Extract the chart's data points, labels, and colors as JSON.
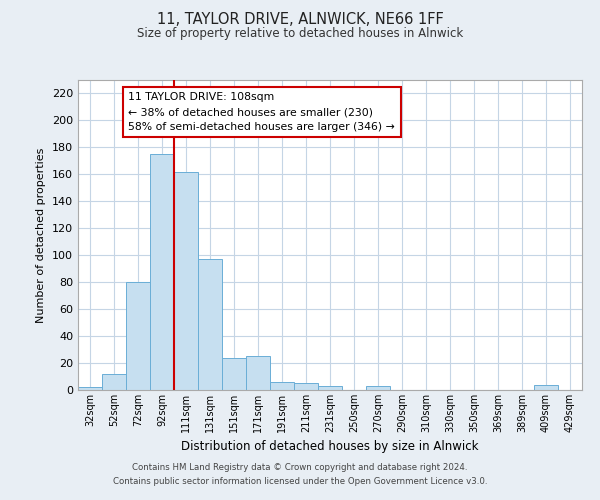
{
  "title1": "11, TAYLOR DRIVE, ALNWICK, NE66 1FF",
  "title2": "Size of property relative to detached houses in Alnwick",
  "xlabel": "Distribution of detached houses by size in Alnwick",
  "ylabel": "Number of detached properties",
  "bar_labels": [
    "32sqm",
    "52sqm",
    "72sqm",
    "92sqm",
    "111sqm",
    "131sqm",
    "151sqm",
    "171sqm",
    "191sqm",
    "211sqm",
    "231sqm",
    "250sqm",
    "270sqm",
    "290sqm",
    "310sqm",
    "330sqm",
    "350sqm",
    "369sqm",
    "389sqm",
    "409sqm",
    "429sqm"
  ],
  "bar_values": [
    2,
    12,
    80,
    175,
    162,
    97,
    24,
    25,
    6,
    5,
    3,
    0,
    3,
    0,
    0,
    0,
    0,
    0,
    0,
    4,
    0
  ],
  "bar_color": "#c6dff0",
  "bar_edgecolor": "#6aaed6",
  "vline_color": "#cc0000",
  "annotation_box_text": "11 TAYLOR DRIVE: 108sqm\n← 38% of detached houses are smaller (230)\n58% of semi-detached houses are larger (346) →",
  "ylim": [
    0,
    230
  ],
  "yticks": [
    0,
    20,
    40,
    60,
    80,
    100,
    120,
    140,
    160,
    180,
    200,
    220
  ],
  "footer1": "Contains HM Land Registry data © Crown copyright and database right 2024.",
  "footer2": "Contains public sector information licensed under the Open Government Licence v3.0.",
  "bg_color": "#e8eef4",
  "plot_bg_color": "#ffffff",
  "grid_color": "#c5d5e5"
}
